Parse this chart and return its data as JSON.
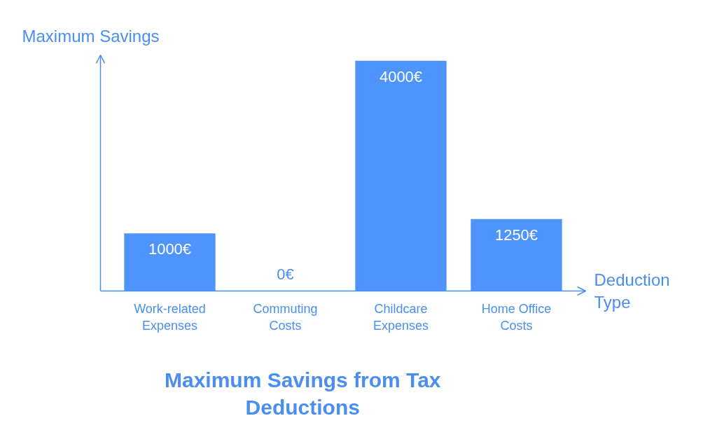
{
  "chart_data": {
    "type": "bar",
    "title": "Maximum Savings from Tax Deductions",
    "xlabel": "Deduction Type",
    "ylabel": "Maximum Savings",
    "categories": [
      "Work-related Expenses",
      "Commuting Costs",
      "Childcare Expenses",
      "Home Office Costs"
    ],
    "values": [
      1000,
      0,
      4000,
      1250
    ],
    "value_labels": [
      "1000€",
      "0€",
      "4000€",
      "1250€"
    ],
    "color": "#4f94fc",
    "ylim": [
      0,
      4100
    ],
    "tick_labels": "x",
    "grid": false
  }
}
